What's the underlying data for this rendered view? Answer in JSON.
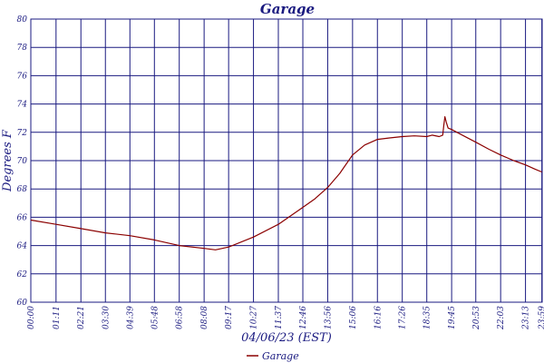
{
  "chart_data": {
    "type": "line",
    "title": "Garage",
    "xlabel": "04/06/23 (EST)",
    "ylabel": "Degrees F",
    "ylim": [
      60,
      80
    ],
    "yticks": [
      60,
      62,
      64,
      66,
      68,
      70,
      72,
      74,
      76,
      78,
      80
    ],
    "xlim": [
      0,
      1440
    ],
    "xticks": [
      {
        "label": "00:00",
        "x": 0
      },
      {
        "label": "01:11",
        "x": 71
      },
      {
        "label": "02:21",
        "x": 141
      },
      {
        "label": "03:30",
        "x": 210
      },
      {
        "label": "04:39",
        "x": 279
      },
      {
        "label": "05:48",
        "x": 348
      },
      {
        "label": "06:58",
        "x": 418
      },
      {
        "label": "08:08",
        "x": 488
      },
      {
        "label": "09:17",
        "x": 557
      },
      {
        "label": "10:27",
        "x": 627
      },
      {
        "label": "11:37",
        "x": 697
      },
      {
        "label": "12:46",
        "x": 766
      },
      {
        "label": "13:56",
        "x": 836
      },
      {
        "label": "15:06",
        "x": 906
      },
      {
        "label": "16:16",
        "x": 976
      },
      {
        "label": "17:26",
        "x": 1046
      },
      {
        "label": "18:35",
        "x": 1115
      },
      {
        "label": "19:45",
        "x": 1185
      },
      {
        "label": "20:53",
        "x": 1253
      },
      {
        "label": "22:03",
        "x": 1323
      },
      {
        "label": "23:13",
        "x": 1393
      },
      {
        "label": "23:59",
        "x": 1439
      }
    ],
    "grid": true,
    "legend": "bottom-center",
    "series": [
      {
        "name": "Garage",
        "color": "#8b0000",
        "x": [
          0,
          71,
          141,
          210,
          279,
          348,
          418,
          488,
          520,
          557,
          627,
          697,
          766,
          800,
          836,
          870,
          906,
          940,
          976,
          1010,
          1046,
          1080,
          1115,
          1130,
          1150,
          1160,
          1163,
          1166,
          1170,
          1175,
          1185,
          1200,
          1253,
          1290,
          1323,
          1360,
          1393,
          1420,
          1439
        ],
        "y": [
          65.8,
          65.5,
          65.2,
          64.9,
          64.7,
          64.4,
          64.0,
          63.8,
          63.7,
          63.9,
          64.6,
          65.5,
          66.7,
          67.3,
          68.1,
          69.1,
          70.4,
          71.1,
          71.5,
          71.6,
          71.7,
          71.75,
          71.7,
          71.8,
          71.7,
          71.8,
          72.5,
          73.1,
          72.7,
          72.3,
          72.2,
          72.0,
          71.3,
          70.8,
          70.4,
          70.0,
          69.7,
          69.4,
          69.2
        ]
      }
    ]
  }
}
